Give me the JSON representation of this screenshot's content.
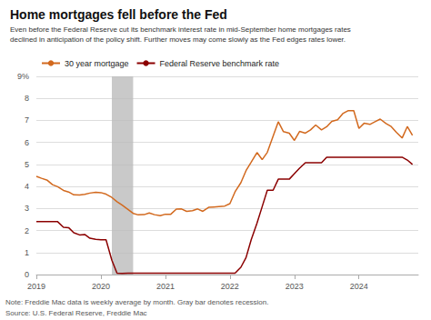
{
  "chart_data": {
    "type": "line",
    "title": "Home mortgages fell before the Fed",
    "subtitle": "Even before the Federal Reserve cut its benchmark interest rate in mid-September home mortgages rates\ndeclined in anticipation of the policy shift. Further moves may come slowly as the Fed edges rates lower.",
    "annotations": [
      "Note: Freddie Mac data is weekly average by month. Gray bar denotes recession.",
      "Source: U.S. Federal Reserve, Freddie Mac"
    ],
    "x": [
      2019.0,
      2019.08,
      2019.17,
      2019.25,
      2019.33,
      2019.42,
      2019.5,
      2019.58,
      2019.67,
      2019.75,
      2019.83,
      2019.92,
      2020.0,
      2020.08,
      2020.17,
      2020.25,
      2020.33,
      2020.42,
      2020.5,
      2020.58,
      2020.67,
      2020.75,
      2020.83,
      2020.92,
      2021.0,
      2021.08,
      2021.17,
      2021.25,
      2021.33,
      2021.42,
      2021.5,
      2021.58,
      2021.67,
      2021.75,
      2021.83,
      2021.92,
      2022.0,
      2022.08,
      2022.17,
      2022.25,
      2022.33,
      2022.42,
      2022.5,
      2022.58,
      2022.67,
      2022.75,
      2022.83,
      2022.92,
      2023.0,
      2023.08,
      2023.17,
      2023.25,
      2023.33,
      2023.42,
      2023.5,
      2023.58,
      2023.67,
      2023.75,
      2023.83,
      2023.92,
      2024.0,
      2024.08,
      2024.17,
      2024.25,
      2024.33,
      2024.42,
      2024.5,
      2024.58,
      2024.67,
      2024.75,
      2024.83
    ],
    "series": [
      {
        "name": "30 year mortgage",
        "color": "#D2691E",
        "values": [
          4.46,
          4.37,
          4.28,
          4.08,
          3.99,
          3.82,
          3.75,
          3.62,
          3.61,
          3.64,
          3.7,
          3.74,
          3.72,
          3.65,
          3.5,
          3.31,
          3.15,
          2.96,
          2.78,
          2.71,
          2.72,
          2.8,
          2.72,
          2.67,
          2.74,
          2.73,
          2.97,
          2.98,
          2.87,
          2.9,
          2.98,
          2.87,
          3.05,
          3.07,
          3.09,
          3.11,
          3.22,
          3.76,
          4.17,
          4.72,
          5.1,
          5.54,
          5.22,
          5.55,
          6.29,
          6.94,
          6.49,
          6.42,
          6.09,
          6.5,
          6.42,
          6.57,
          6.79,
          6.57,
          6.71,
          6.96,
          7.03,
          7.31,
          7.44,
          7.44,
          6.64,
          6.87,
          6.82,
          6.94,
          7.06,
          6.86,
          6.72,
          6.46,
          6.2,
          6.72,
          6.32
        ]
      },
      {
        "name": "Federal Reserve benchmark rate",
        "color": "#8B0000",
        "values": [
          2.4,
          2.4,
          2.4,
          2.4,
          2.4,
          2.15,
          2.13,
          1.9,
          1.8,
          1.82,
          1.65,
          1.6,
          1.58,
          1.58,
          0.65,
          0.06,
          0.05,
          0.06,
          0.06,
          0.06,
          0.06,
          0.06,
          0.06,
          0.06,
          0.06,
          0.06,
          0.06,
          0.06,
          0.06,
          0.06,
          0.06,
          0.06,
          0.06,
          0.06,
          0.06,
          0.06,
          0.06,
          0.06,
          0.33,
          0.77,
          1.58,
          2.33,
          3.08,
          3.83,
          3.83,
          4.33,
          4.33,
          4.33,
          4.58,
          4.83,
          5.08,
          5.08,
          5.08,
          5.08,
          5.33,
          5.33,
          5.33,
          5.33,
          5.33,
          5.33,
          5.33,
          5.33,
          5.33,
          5.33,
          5.33,
          5.33,
          5.33,
          5.33,
          5.33,
          5.2,
          5.0
        ]
      }
    ],
    "shaded_span": {
      "x": [
        2020.17,
        2020.5
      ],
      "color": "#BBBBBB"
    },
    "xlim": [
      2019.0,
      2024.92
    ],
    "xticks": [
      2019,
      2020,
      2021,
      2022,
      2023,
      2024
    ],
    "ylim": [
      0,
      9
    ],
    "yticks": [
      0,
      1,
      2,
      3,
      4,
      5,
      6,
      7,
      8,
      {
        "value": 9,
        "label": "9%"
      }
    ],
    "grid": true,
    "legend": "top"
  }
}
